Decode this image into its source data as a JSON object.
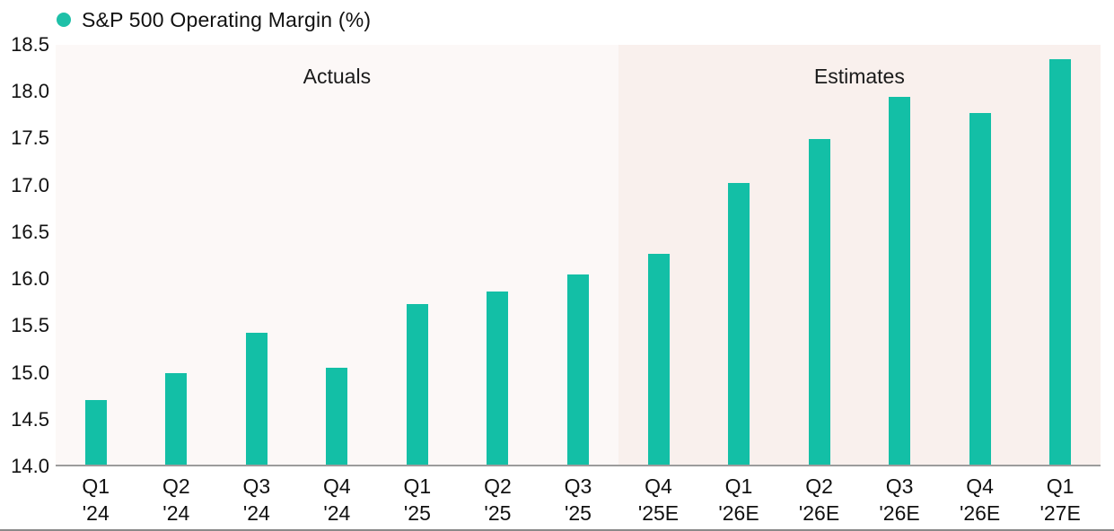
{
  "legend": {
    "label": "S&P 500 Operating Margin (%)",
    "dot_color": "#1ec0a8"
  },
  "regions": {
    "actuals_label": "Actuals",
    "estimates_label": "Estimates"
  },
  "colors": {
    "bar": "#13bfa6",
    "actuals_background": "#fcf8f7",
    "estimates_background": "#f9f0ed",
    "axis_line": "#9c9c9c"
  },
  "chart_data": {
    "type": "bar",
    "title": "S&P 500 Operating Margin (%)",
    "xlabel": "",
    "ylabel": "",
    "ylim": [
      14.0,
      18.5
    ],
    "ytick_step": 0.5,
    "yticks": [
      "18.5",
      "18.0",
      "17.5",
      "17.0",
      "16.5",
      "16.0",
      "15.5",
      "15.0",
      "14.5",
      "14.0"
    ],
    "grid": false,
    "legend_position": "top-left",
    "actuals_count": 7,
    "annotations": [
      "Actuals",
      "Estimates"
    ],
    "categories": [
      {
        "quarter": "Q1",
        "year": "'24"
      },
      {
        "quarter": "Q2",
        "year": "'24"
      },
      {
        "quarter": "Q3",
        "year": "'24"
      },
      {
        "quarter": "Q4",
        "year": "'24"
      },
      {
        "quarter": "Q1",
        "year": "'25"
      },
      {
        "quarter": "Q2",
        "year": "'25"
      },
      {
        "quarter": "Q3",
        "year": "'25"
      },
      {
        "quarter": "Q4",
        "year": "'25E"
      },
      {
        "quarter": "Q1",
        "year": "'26E"
      },
      {
        "quarter": "Q2",
        "year": "'26E"
      },
      {
        "quarter": "Q3",
        "year": "'26E"
      },
      {
        "quarter": "Q4",
        "year": "'26E"
      },
      {
        "quarter": "Q1",
        "year": "'27E"
      }
    ],
    "values": [
      14.69,
      14.98,
      15.41,
      15.03,
      15.71,
      15.85,
      16.03,
      16.25,
      17.01,
      17.48,
      17.93,
      17.75,
      18.33
    ]
  }
}
